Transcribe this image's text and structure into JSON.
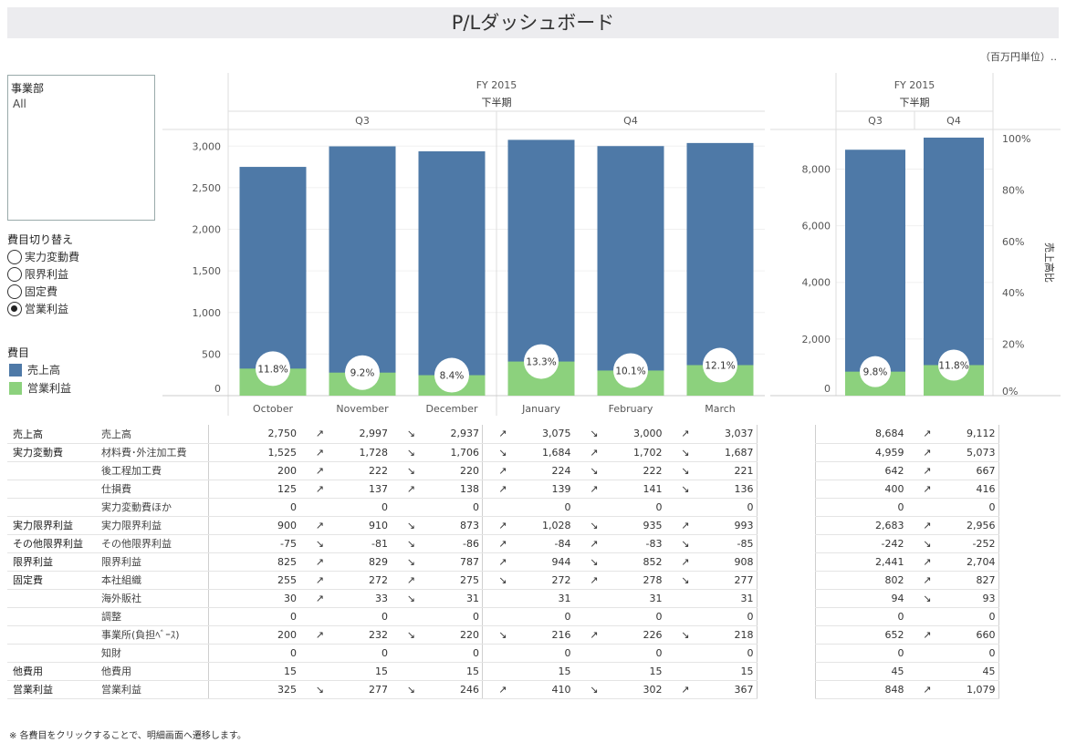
{
  "title": "P/Lダッシュボード",
  "unit_note": "（百万円単位）..",
  "filter": {
    "label": "事業部",
    "value": "All"
  },
  "radio": {
    "label": "費目切り替え",
    "options": [
      "実力変動費",
      "限界利益",
      "固定費",
      "営業利益"
    ],
    "selected": "営業利益"
  },
  "legend": {
    "label": "費目",
    "items": [
      {
        "name": "売上高",
        "color": "#4e79a7"
      },
      {
        "name": "営業利益",
        "color": "#8cd17d"
      }
    ]
  },
  "footnote": "※ 各費目をクリックすることで、明細画面へ遷移します。",
  "chart_data": [
    {
      "type": "bar",
      "header": {
        "fy": "FY 2015",
        "half": "下半期",
        "quarters": [
          "Q3",
          "Q4"
        ]
      },
      "categories": [
        "October",
        "November",
        "December",
        "January",
        "February",
        "March"
      ],
      "series": [
        {
          "name": "売上高",
          "values": [
            2750,
            2997,
            2937,
            3075,
            3000,
            3037
          ]
        },
        {
          "name": "営業利益",
          "values": [
            325,
            277,
            246,
            410,
            302,
            367
          ]
        }
      ],
      "labels": [
        "11.8%",
        "9.2%",
        "8.4%",
        "13.3%",
        "10.1%",
        "12.1%"
      ],
      "yticks": [
        "0",
        "500",
        "1,000",
        "1,500",
        "2,000",
        "2,500",
        "3,000"
      ],
      "ylim": [
        0,
        3200
      ]
    },
    {
      "type": "bar",
      "header": {
        "fy": "FY 2015",
        "half": "下半期"
      },
      "categories": [
        "Q3",
        "Q4"
      ],
      "series": [
        {
          "name": "売上高",
          "values": [
            8684,
            9112
          ]
        },
        {
          "name": "営業利益",
          "values": [
            848,
            1079
          ]
        }
      ],
      "labels": [
        "9.8%",
        "11.8%"
      ],
      "yticks": [
        "0",
        "2,000",
        "4,000",
        "6,000",
        "8,000"
      ],
      "ylim": [
        0,
        9400
      ],
      "y2ticks": [
        "0%",
        "20%",
        "40%",
        "60%",
        "80%",
        "100%"
      ],
      "y2label": "売上高比"
    }
  ],
  "table": {
    "rows": [
      {
        "cat": "売上高",
        "sub": "売上高",
        "m": [
          [
            "",
            "2,750"
          ],
          [
            "↗",
            "2,997"
          ],
          [
            "↘",
            "2,937"
          ],
          [
            "↗",
            "3,075"
          ],
          [
            "↘",
            "3,000"
          ],
          [
            "↗",
            "3,037"
          ]
        ],
        "q": [
          [
            "",
            "8,684"
          ],
          [
            "↗",
            "9,112"
          ]
        ]
      },
      {
        "cat": "実力変動費",
        "sub": "材料費･外注加工費",
        "m": [
          [
            "",
            "1,525"
          ],
          [
            "↗",
            "1,728"
          ],
          [
            "↘",
            "1,706"
          ],
          [
            "↘",
            "1,684"
          ],
          [
            "↗",
            "1,702"
          ],
          [
            "↘",
            "1,687"
          ]
        ],
        "q": [
          [
            "",
            "4,959"
          ],
          [
            "↗",
            "5,073"
          ]
        ]
      },
      {
        "cat": "",
        "sub": "後工程加工費",
        "m": [
          [
            "",
            "200"
          ],
          [
            "↗",
            "222"
          ],
          [
            "↘",
            "220"
          ],
          [
            "↗",
            "224"
          ],
          [
            "↘",
            "222"
          ],
          [
            "↘",
            "221"
          ]
        ],
        "q": [
          [
            "",
            "642"
          ],
          [
            "↗",
            "667"
          ]
        ]
      },
      {
        "cat": "",
        "sub": "仕損費",
        "m": [
          [
            "",
            "125"
          ],
          [
            "↗",
            "137"
          ],
          [
            "↗",
            "138"
          ],
          [
            "↗",
            "139"
          ],
          [
            "↗",
            "141"
          ],
          [
            "↘",
            "136"
          ]
        ],
        "q": [
          [
            "",
            "400"
          ],
          [
            "↗",
            "416"
          ]
        ]
      },
      {
        "cat": "",
        "sub": "実力変動費ほか",
        "m": [
          [
            "",
            "0"
          ],
          [
            "",
            "0"
          ],
          [
            "",
            "0"
          ],
          [
            "",
            "0"
          ],
          [
            "",
            "0"
          ],
          [
            "",
            "0"
          ]
        ],
        "q": [
          [
            "",
            "0"
          ],
          [
            "",
            "0"
          ]
        ]
      },
      {
        "cat": "実力限界利益",
        "sub": "実力限界利益",
        "m": [
          [
            "",
            "900"
          ],
          [
            "↗",
            "910"
          ],
          [
            "↘",
            "873"
          ],
          [
            "↗",
            "1,028"
          ],
          [
            "↘",
            "935"
          ],
          [
            "↗",
            "993"
          ]
        ],
        "q": [
          [
            "",
            "2,683"
          ],
          [
            "↗",
            "2,956"
          ]
        ]
      },
      {
        "cat": "その他限界利益",
        "sub": "その他限界利益",
        "m": [
          [
            "",
            "-75"
          ],
          [
            "↘",
            "-81"
          ],
          [
            "↘",
            "-86"
          ],
          [
            "↗",
            "-84"
          ],
          [
            "↗",
            "-83"
          ],
          [
            "↘",
            "-85"
          ]
        ],
        "q": [
          [
            "",
            "-242"
          ],
          [
            "↘",
            "-252"
          ]
        ]
      },
      {
        "cat": "限界利益",
        "sub": "限界利益",
        "m": [
          [
            "",
            "825"
          ],
          [
            "↗",
            "829"
          ],
          [
            "↘",
            "787"
          ],
          [
            "↗",
            "944"
          ],
          [
            "↘",
            "852"
          ],
          [
            "↗",
            "908"
          ]
        ],
        "q": [
          [
            "",
            "2,441"
          ],
          [
            "↗",
            "2,704"
          ]
        ]
      },
      {
        "cat": "固定費",
        "sub": "本社組織",
        "m": [
          [
            "",
            "255"
          ],
          [
            "↗",
            "272"
          ],
          [
            "↗",
            "275"
          ],
          [
            "↘",
            "272"
          ],
          [
            "↗",
            "278"
          ],
          [
            "↘",
            "277"
          ]
        ],
        "q": [
          [
            "",
            "802"
          ],
          [
            "↗",
            "827"
          ]
        ]
      },
      {
        "cat": "",
        "sub": "海外販社",
        "m": [
          [
            "",
            "30"
          ],
          [
            "↗",
            "33"
          ],
          [
            "↘",
            "31"
          ],
          [
            "",
            "31"
          ],
          [
            "",
            "31"
          ],
          [
            "",
            "31"
          ]
        ],
        "q": [
          [
            "",
            "94"
          ],
          [
            "↘",
            "93"
          ]
        ]
      },
      {
        "cat": "",
        "sub": "調整",
        "m": [
          [
            "",
            "0"
          ],
          [
            "",
            "0"
          ],
          [
            "",
            "0"
          ],
          [
            "",
            "0"
          ],
          [
            "",
            "0"
          ],
          [
            "",
            "0"
          ]
        ],
        "q": [
          [
            "",
            "0"
          ],
          [
            "",
            "0"
          ]
        ]
      },
      {
        "cat": "",
        "sub": "事業所(負担ﾍﾞｰｽ)",
        "m": [
          [
            "",
            "200"
          ],
          [
            "↗",
            "232"
          ],
          [
            "↘",
            "220"
          ],
          [
            "↘",
            "216"
          ],
          [
            "↗",
            "226"
          ],
          [
            "↘",
            "218"
          ]
        ],
        "q": [
          [
            "",
            "652"
          ],
          [
            "↗",
            "660"
          ]
        ]
      },
      {
        "cat": "",
        "sub": "知財",
        "m": [
          [
            "",
            "0"
          ],
          [
            "",
            "0"
          ],
          [
            "",
            "0"
          ],
          [
            "",
            "0"
          ],
          [
            "",
            "0"
          ],
          [
            "",
            "0"
          ]
        ],
        "q": [
          [
            "",
            "0"
          ],
          [
            "",
            "0"
          ]
        ]
      },
      {
        "cat": "他費用",
        "sub": "他費用",
        "m": [
          [
            "",
            "15"
          ],
          [
            "",
            "15"
          ],
          [
            "",
            "15"
          ],
          [
            "",
            "15"
          ],
          [
            "",
            "15"
          ],
          [
            "",
            "15"
          ]
        ],
        "q": [
          [
            "",
            "45"
          ],
          [
            "",
            "45"
          ]
        ]
      },
      {
        "cat": "営業利益",
        "sub": "営業利益",
        "m": [
          [
            "",
            "325"
          ],
          [
            "↘",
            "277"
          ],
          [
            "↘",
            "246"
          ],
          [
            "↗",
            "410"
          ],
          [
            "↘",
            "302"
          ],
          [
            "↗",
            "367"
          ]
        ],
        "q": [
          [
            "",
            "848"
          ],
          [
            "↗",
            "1,079"
          ]
        ]
      }
    ]
  }
}
